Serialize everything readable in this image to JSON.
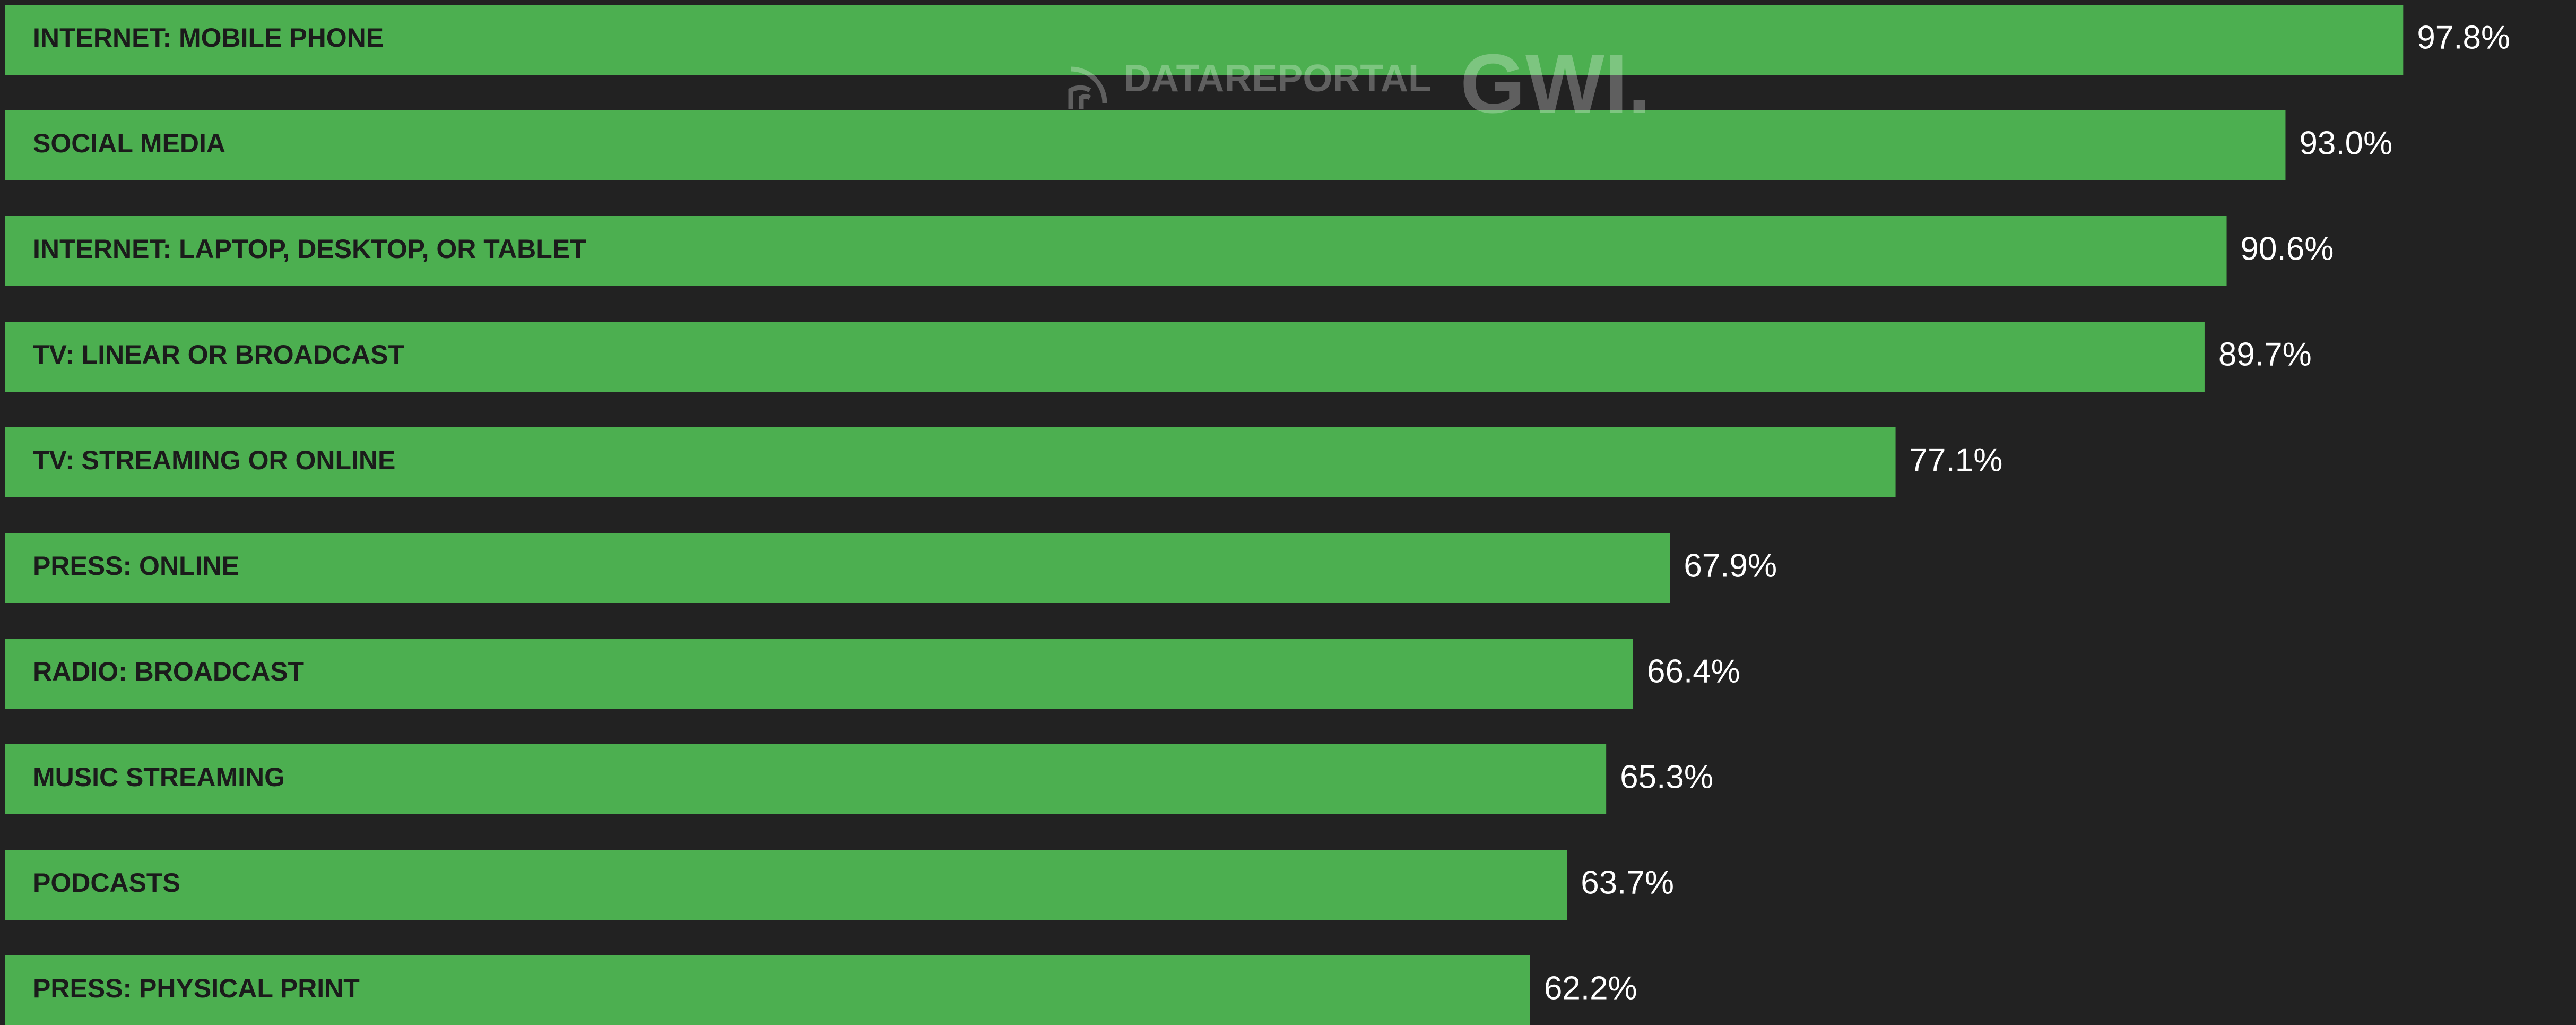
{
  "chart_data": {
    "type": "bar",
    "orientation": "horizontal",
    "categories": [
      "INTERNET: MOBILE PHONE",
      "SOCIAL MEDIA",
      "INTERNET: LAPTOP, DESKTOP, OR TABLET",
      "TV: LINEAR OR BROADCAST",
      "TV: STREAMING OR ONLINE",
      "PRESS: ONLINE",
      "RADIO: BROADCAST",
      "MUSIC STREAMING",
      "PODCASTS",
      "PRESS: PHYSICAL PRINT"
    ],
    "values": [
      97.8,
      93.0,
      90.6,
      89.7,
      77.1,
      67.9,
      66.4,
      65.3,
      63.7,
      62.2
    ],
    "value_labels": [
      "97.8%",
      "93.0%",
      "90.6%",
      "89.7%",
      "77.1%",
      "67.9%",
      "66.4%",
      "65.3%",
      "63.7%",
      "62.2%"
    ],
    "unit": "%",
    "xlim": [
      0,
      100
    ],
    "bar_color": "#4caf50",
    "background_color": "#222222"
  },
  "watermark": {
    "brand_left": "DATAREPORTAL",
    "brand_right": "GWI."
  }
}
